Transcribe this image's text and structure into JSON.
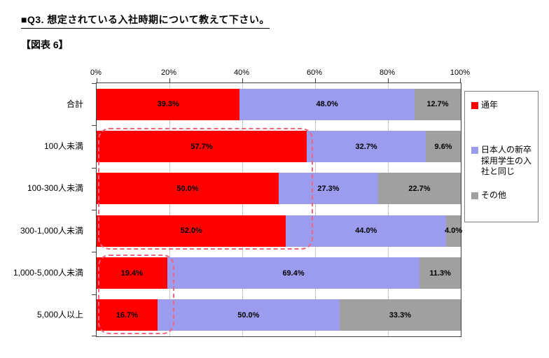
{
  "page": {
    "question_title": "■Q3. 想定されている入社時期について教えて下さい。",
    "figure_label": "【図表 6】"
  },
  "chart_data": {
    "type": "bar",
    "stacked": true,
    "orientation": "horizontal",
    "x_axis": {
      "position": "top",
      "min": 0,
      "max": 100,
      "unit": "%",
      "tick_values": [
        0,
        20,
        40,
        60,
        80,
        100
      ],
      "tick_labels": [
        "0%",
        "20%",
        "40%",
        "60%",
        "80%",
        "100%"
      ],
      "grid_values": [
        20,
        40,
        60,
        80
      ],
      "grid": true
    },
    "categories": [
      "合計",
      "100人未満",
      "100-300人未満",
      "300-1,000人未満",
      "1,000-5,000人未満",
      "5,000人以上"
    ],
    "series": [
      {
        "name": "通年",
        "color": "#FF0000",
        "values": [
          39.3,
          57.7,
          50.0,
          52.0,
          19.4,
          16.7
        ],
        "labels": [
          "39.3%",
          "57.7%",
          "50.0%",
          "52.0%",
          "19.4%",
          "16.7%"
        ]
      },
      {
        "name": "日本人の新卒採用学生の入社と同じ",
        "color": "#9C9CEE",
        "values": [
          48.0,
          32.7,
          27.3,
          44.0,
          69.4,
          50.0
        ],
        "labels": [
          "48.0%",
          "32.7%",
          "27.3%",
          "44.0%",
          "69.4%",
          "50.0%"
        ]
      },
      {
        "name": "その他",
        "color": "#A0A0A0",
        "values": [
          12.7,
          9.6,
          22.7,
          4.0,
          11.3,
          33.3
        ],
        "labels": [
          "12.7%",
          "9.6%",
          "22.7%",
          "4.0%",
          "11.3%",
          "33.3%"
        ]
      }
    ],
    "legend": {
      "position": "right",
      "items": [
        "通年",
        "日本人の新卒採用学生の入社と同じ",
        "その他"
      ]
    },
    "annotations": [
      {
        "type": "dashed-rounded-box",
        "color": "#F0647E",
        "row_start": 1,
        "row_end": 3,
        "x_start_pct": 0.3,
        "x_end_pct": 59.5
      },
      {
        "type": "dashed-rounded-box",
        "color": "#F0647E",
        "row_start": 4,
        "row_end": 5,
        "x_start_pct": 0.3,
        "x_end_pct": 21.3
      }
    ],
    "colors": {
      "grid": "#C9C9C9",
      "plot_border": "#404040",
      "legend_border": "#7F7F7F",
      "label_text": "#000000"
    }
  }
}
